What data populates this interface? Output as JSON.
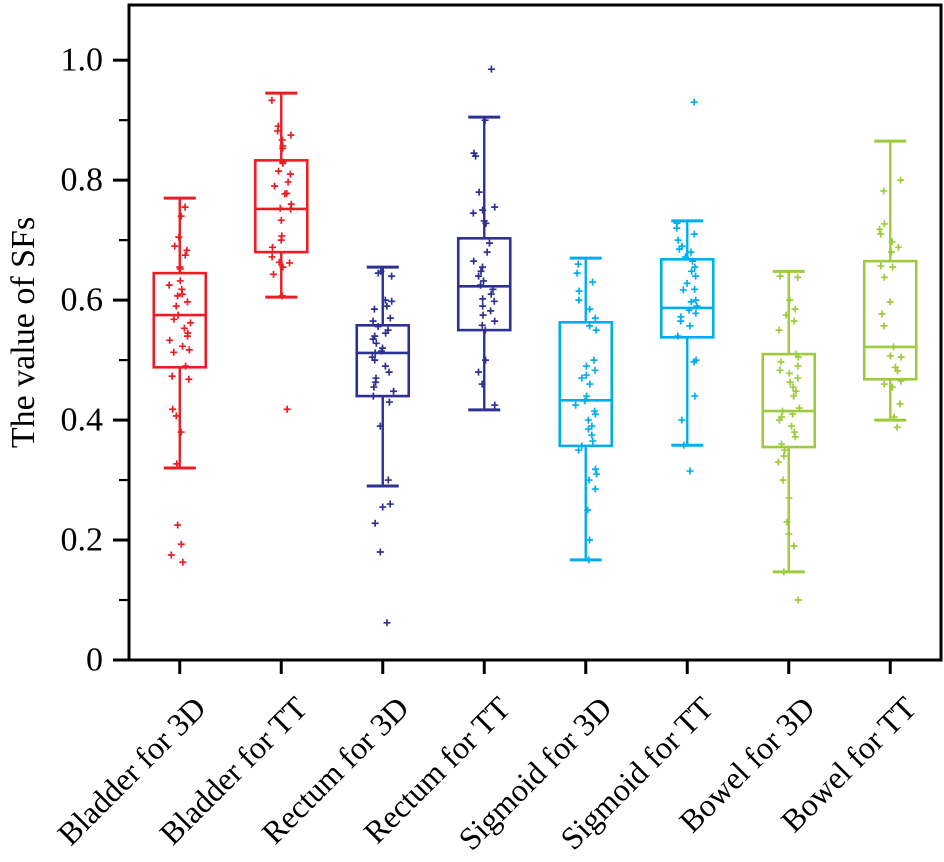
{
  "figure": {
    "background": "#ffffff",
    "frame_color": "#000000",
    "text_color": "#000000"
  },
  "chart_data": {
    "type": "box",
    "title": "",
    "xlabel": "",
    "ylabel": "The value of SFs",
    "ylim": [
      0,
      1.092
    ],
    "grid": "off",
    "legend": "none",
    "ytick_major": {
      "values": [
        0,
        0.2,
        0.4,
        0.6,
        0.8,
        1.0
      ],
      "labels": [
        "0",
        "0.2",
        "0.4",
        "0.6",
        "0.8",
        "1.0"
      ]
    },
    "ytick_minor": [
      0.1,
      0.3,
      0.5,
      0.7,
      0.9
    ],
    "categories": [
      "Bladder for 3D",
      "Bladder for TT",
      "Rectum for 3D",
      "Rectum for TT",
      "Sigmoid for 3D",
      "Sigmoid for TT",
      "Bowel for 3D",
      "Bowel for TT"
    ],
    "marker": "plus",
    "groups": [
      {
        "label": "Bladder for 3D",
        "color": "#ed1c24",
        "stats": {
          "whisker_low": 0.32,
          "q1": 0.488,
          "median": 0.575,
          "q3": 0.645,
          "whisker_high": 0.77
        },
        "points": [
          0.755,
          0.74,
          0.705,
          0.69,
          0.683,
          0.675,
          0.655,
          0.652,
          0.632,
          0.625,
          0.618,
          0.61,
          0.607,
          0.597,
          0.59,
          0.575,
          0.568,
          0.562,
          0.553,
          0.545,
          0.54,
          0.533,
          0.523,
          0.517,
          0.513,
          0.49,
          0.473,
          0.468,
          0.418,
          0.407,
          0.38,
          0.327,
          0.225,
          0.193,
          0.175,
          0.163
        ]
      },
      {
        "label": "Bladder for TT",
        "color": "#ed1c24",
        "stats": {
          "whisker_low": 0.605,
          "q1": 0.68,
          "median": 0.752,
          "q3": 0.833,
          "whisker_high": 0.945
        },
        "points": [
          0.933,
          0.89,
          0.882,
          0.875,
          0.867,
          0.857,
          0.853,
          0.83,
          0.828,
          0.815,
          0.81,
          0.797,
          0.79,
          0.778,
          0.777,
          0.76,
          0.753,
          0.752,
          0.733,
          0.707,
          0.7,
          0.688,
          0.672,
          0.663,
          0.662,
          0.655,
          0.643,
          0.607,
          0.418
        ]
      },
      {
        "label": "Rectum for 3D",
        "color": "#2e3192",
        "stats": {
          "whisker_low": 0.29,
          "q1": 0.44,
          "median": 0.512,
          "q3": 0.558,
          "whisker_high": 0.655
        },
        "points": [
          0.648,
          0.645,
          0.64,
          0.6,
          0.598,
          0.59,
          0.585,
          0.57,
          0.565,
          0.556,
          0.55,
          0.545,
          0.54,
          0.535,
          0.528,
          0.52,
          0.515,
          0.512,
          0.505,
          0.5,
          0.49,
          0.48,
          0.47,
          0.463,
          0.455,
          0.448,
          0.44,
          0.43,
          0.39,
          0.3,
          0.26,
          0.255,
          0.228,
          0.18,
          0.062
        ]
      },
      {
        "label": "Rectum for TT",
        "color": "#2e3192",
        "stats": {
          "whisker_low": 0.417,
          "q1": 0.55,
          "median": 0.623,
          "q3": 0.703,
          "whisker_high": 0.905
        },
        "points": [
          0.985,
          0.9,
          0.845,
          0.84,
          0.78,
          0.755,
          0.75,
          0.745,
          0.732,
          0.728,
          0.695,
          0.68,
          0.665,
          0.655,
          0.648,
          0.64,
          0.632,
          0.625,
          0.618,
          0.61,
          0.602,
          0.598,
          0.59,
          0.582,
          0.575,
          0.565,
          0.558,
          0.55,
          0.5,
          0.48,
          0.46,
          0.425
        ]
      },
      {
        "label": "Sigmoid for 3D",
        "color": "#00aeef",
        "stats": {
          "whisker_low": 0.167,
          "q1": 0.357,
          "median": 0.433,
          "q3": 0.563,
          "whisker_high": 0.67
        },
        "points": [
          0.66,
          0.645,
          0.63,
          0.615,
          0.6,
          0.585,
          0.57,
          0.557,
          0.55,
          0.5,
          0.49,
          0.483,
          0.475,
          0.47,
          0.46,
          0.44,
          0.432,
          0.425,
          0.415,
          0.41,
          0.4,
          0.39,
          0.385,
          0.375,
          0.365,
          0.357,
          0.35,
          0.318,
          0.31,
          0.3,
          0.285,
          0.25,
          0.2,
          0.167
        ]
      },
      {
        "label": "Sigmoid for TT",
        "color": "#00aeef",
        "stats": {
          "whisker_low": 0.358,
          "q1": 0.538,
          "median": 0.587,
          "q3": 0.668,
          "whisker_high": 0.732
        },
        "points": [
          0.93,
          0.728,
          0.72,
          0.71,
          0.7,
          0.69,
          0.685,
          0.68,
          0.672,
          0.665,
          0.655,
          0.648,
          0.64,
          0.628,
          0.618,
          0.617,
          0.6,
          0.597,
          0.59,
          0.583,
          0.578,
          0.572,
          0.565,
          0.557,
          0.54,
          0.5,
          0.497,
          0.44,
          0.4,
          0.358,
          0.315
        ]
      },
      {
        "label": "Bowel for 3D",
        "color": "#9dcb3b",
        "stats": {
          "whisker_low": 0.147,
          "q1": 0.355,
          "median": 0.415,
          "q3": 0.51,
          "whisker_high": 0.648
        },
        "points": [
          0.64,
          0.638,
          0.6,
          0.585,
          0.575,
          0.565,
          0.55,
          0.51,
          0.505,
          0.497,
          0.49,
          0.483,
          0.478,
          0.47,
          0.463,
          0.455,
          0.448,
          0.44,
          0.42,
          0.415,
          0.41,
          0.405,
          0.4,
          0.39,
          0.38,
          0.372,
          0.36,
          0.35,
          0.34,
          0.33,
          0.3,
          0.27,
          0.23,
          0.21,
          0.19,
          0.147,
          0.1
        ]
      },
      {
        "label": "Bowel for TT",
        "color": "#9dcb3b",
        "stats": {
          "whisker_low": 0.4,
          "q1": 0.468,
          "median": 0.522,
          "q3": 0.665,
          "whisker_high": 0.865
        },
        "points": [
          0.8,
          0.782,
          0.727,
          0.718,
          0.71,
          0.697,
          0.688,
          0.68,
          0.657,
          0.655,
          0.638,
          0.597,
          0.577,
          0.557,
          0.522,
          0.507,
          0.505,
          0.488,
          0.482,
          0.465,
          0.46,
          0.455,
          0.427,
          0.405,
          0.388
        ]
      }
    ]
  }
}
